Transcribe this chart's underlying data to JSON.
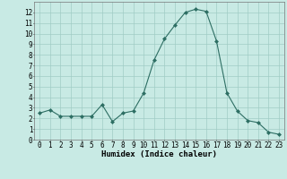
{
  "x": [
    0,
    1,
    2,
    3,
    4,
    5,
    6,
    7,
    8,
    9,
    10,
    11,
    12,
    13,
    14,
    15,
    16,
    17,
    18,
    19,
    20,
    21,
    22,
    23
  ],
  "y": [
    2.5,
    2.8,
    2.2,
    2.2,
    2.2,
    2.2,
    3.3,
    1.7,
    2.5,
    2.7,
    4.4,
    7.5,
    9.5,
    10.8,
    12.0,
    12.3,
    12.1,
    9.3,
    4.4,
    2.7,
    1.8,
    1.6,
    0.7,
    0.5
  ],
  "line_color": "#2d6e63",
  "marker": "D",
  "marker_size": 2.0,
  "bg_color": "#c8eae4",
  "grid_color": "#a0ccc5",
  "xlabel": "Humidex (Indice chaleur)",
  "xlabel_fontsize": 6.5,
  "xlim": [
    -0.5,
    23.5
  ],
  "ylim": [
    0,
    13
  ],
  "yticks": [
    0,
    1,
    2,
    3,
    4,
    5,
    6,
    7,
    8,
    9,
    10,
    11,
    12
  ],
  "xticks": [
    0,
    1,
    2,
    3,
    4,
    5,
    6,
    7,
    8,
    9,
    10,
    11,
    12,
    13,
    14,
    15,
    16,
    17,
    18,
    19,
    20,
    21,
    22,
    23
  ],
  "tick_fontsize": 5.5
}
